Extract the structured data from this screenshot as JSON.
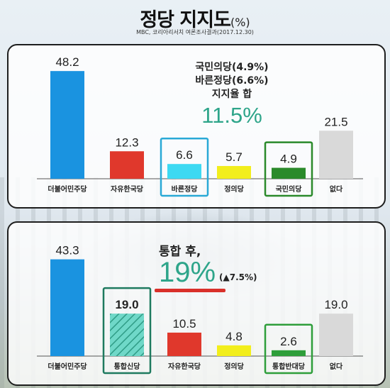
{
  "title": "정당 지지도",
  "title_unit": "(%)",
  "source": "MBC, 코리아리서치 여론조사결과(2017.12.30)",
  "annotation_top": {
    "line1": "국민의당(4.9%)",
    "line2": "바른정당(6.6%)",
    "line3": "지지율 합",
    "value": "11.5%"
  },
  "annotation_bottom": {
    "heading": "통합 후,",
    "value": "19%",
    "change": "(▲7.5%)"
  },
  "chart_data": [
    {
      "type": "bar",
      "categories": [
        "더불어민주당",
        "자유한국당",
        "바른정당",
        "정의당",
        "국민의당",
        "없다"
      ],
      "values": [
        48.2,
        12.3,
        6.6,
        5.7,
        4.9,
        21.5
      ],
      "value_labels": [
        "48.2",
        "12.3",
        "6.6",
        "5.7",
        "4.9",
        "21.5"
      ],
      "colors": [
        "#1a93e0",
        "#e0382c",
        "#3dd9f2",
        "#f2ee1c",
        "#2b8a2b",
        "#d9d9d9"
      ],
      "highlight": [
        null,
        null,
        "#29a9d6",
        null,
        "#2b8a2b",
        null
      ]
    },
    {
      "type": "bar",
      "categories": [
        "더불어민주당",
        "통합신당",
        "자유한국당",
        "정의당",
        "통합반대당",
        "없다"
      ],
      "values": [
        43.3,
        19.0,
        10.5,
        4.8,
        2.6,
        19.0
      ],
      "value_labels": [
        "43.3",
        "19.0",
        "10.5",
        "4.8",
        "2.6",
        "19.0"
      ],
      "colors": [
        "#1a93e0",
        "#6fd8c8",
        "#e0382c",
        "#f2ee1c",
        "#2e9e3a",
        "#d9d9d9"
      ],
      "highlight": [
        null,
        "#1e7a5f",
        null,
        null,
        "#2e9e3a",
        null
      ],
      "hatched": [
        false,
        true,
        false,
        false,
        false,
        false
      ]
    }
  ]
}
